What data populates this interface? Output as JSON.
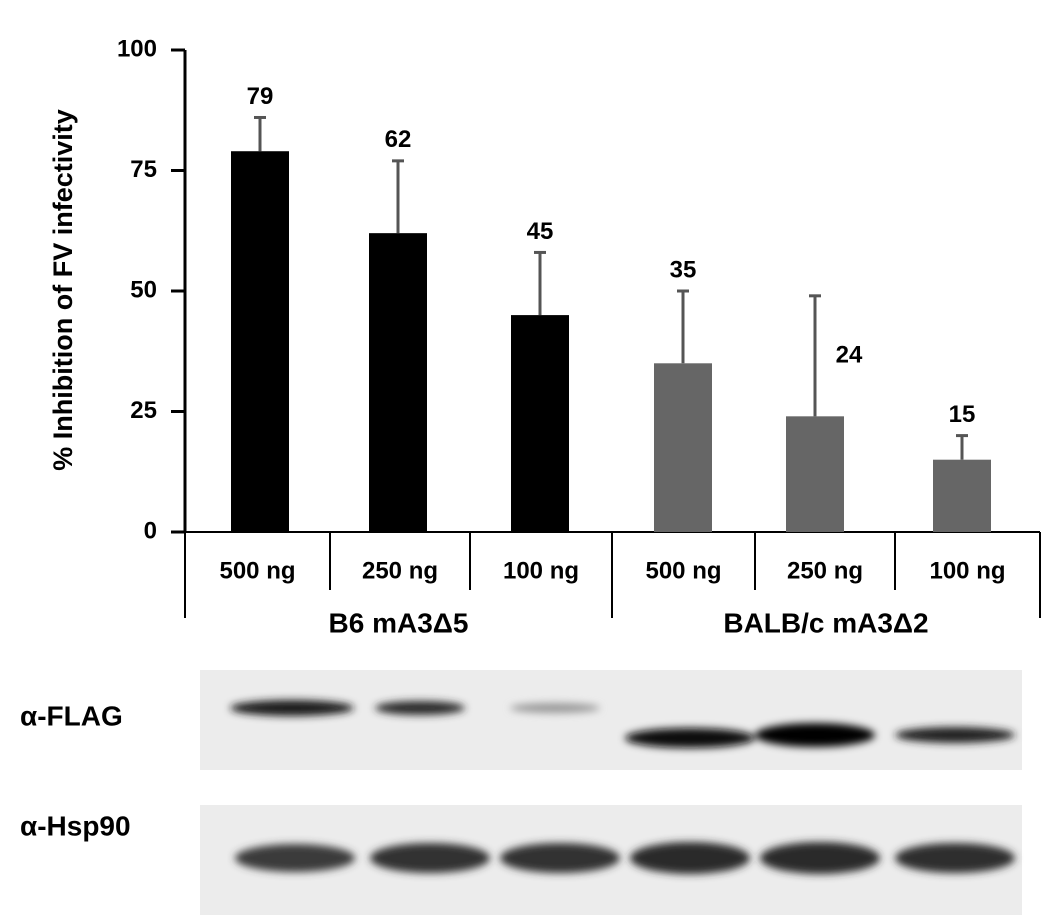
{
  "chart_data": {
    "type": "bar",
    "y_label": "% Inhibition of FV infectivity",
    "categories": [
      "500 ng",
      "250 ng",
      "100 ng",
      "500 ng",
      "250 ng",
      "100 ng"
    ],
    "values": [
      79,
      62,
      45,
      35,
      24,
      15
    ],
    "errors": [
      7,
      15,
      13,
      15,
      25,
      5
    ],
    "colors": [
      "#000000",
      "#000000",
      "#000000",
      "#666666",
      "#666666",
      "#666666"
    ],
    "groups": [
      {
        "label": "B6 mA3Δ5",
        "start": 0,
        "end": 2
      },
      {
        "label": "BALB/c mA3Δ2",
        "start": 3,
        "end": 5
      }
    ],
    "ylim": [
      0,
      100
    ],
    "yticks": [
      0,
      25,
      50,
      75,
      100
    ]
  },
  "blot": {
    "rows": [
      {
        "label": "α-FLAG"
      },
      {
        "label": "α-Hsp90"
      }
    ]
  }
}
